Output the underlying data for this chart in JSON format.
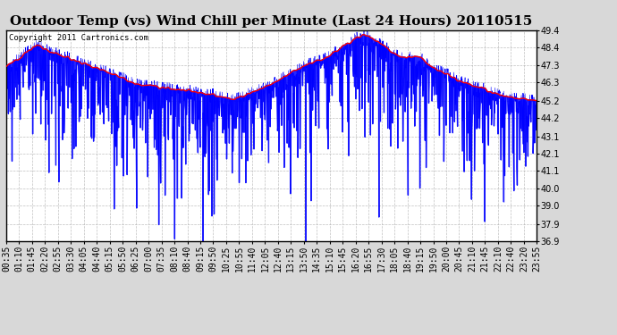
{
  "title": "Outdoor Temp (vs) Wind Chill per Minute (Last 24 Hours) 20110515",
  "copyright": "Copyright 2011 Cartronics.com",
  "yticks": [
    36.9,
    37.9,
    39.0,
    40.0,
    41.1,
    42.1,
    43.1,
    44.2,
    45.2,
    46.3,
    47.3,
    48.4,
    49.4
  ],
  "ymin": 36.9,
  "ymax": 49.4,
  "bg_color": "#d8d8d8",
  "plot_bg_color": "#ffffff",
  "grid_color": "#b0b0b0",
  "title_fontsize": 11,
  "copyright_fontsize": 6.5,
  "tick_fontsize": 7,
  "xtick_labels": [
    "00:35",
    "01:10",
    "01:45",
    "02:20",
    "02:55",
    "03:30",
    "04:05",
    "04:40",
    "05:15",
    "05:50",
    "06:25",
    "07:00",
    "07:35",
    "08:10",
    "08:40",
    "09:15",
    "09:50",
    "10:25",
    "10:55",
    "11:40",
    "12:05",
    "12:40",
    "13:15",
    "13:50",
    "14:35",
    "15:10",
    "15:45",
    "16:20",
    "16:55",
    "17:30",
    "18:05",
    "18:40",
    "19:15",
    "19:50",
    "20:00",
    "20:45",
    "21:10",
    "21:45",
    "22:10",
    "22:40",
    "23:20",
    "23:55"
  ],
  "outdoor_temp_color": "red",
  "wind_chill_color": "blue",
  "outdoor_temp_linewidth": 1.0,
  "wind_chill_linewidth": 0.4
}
